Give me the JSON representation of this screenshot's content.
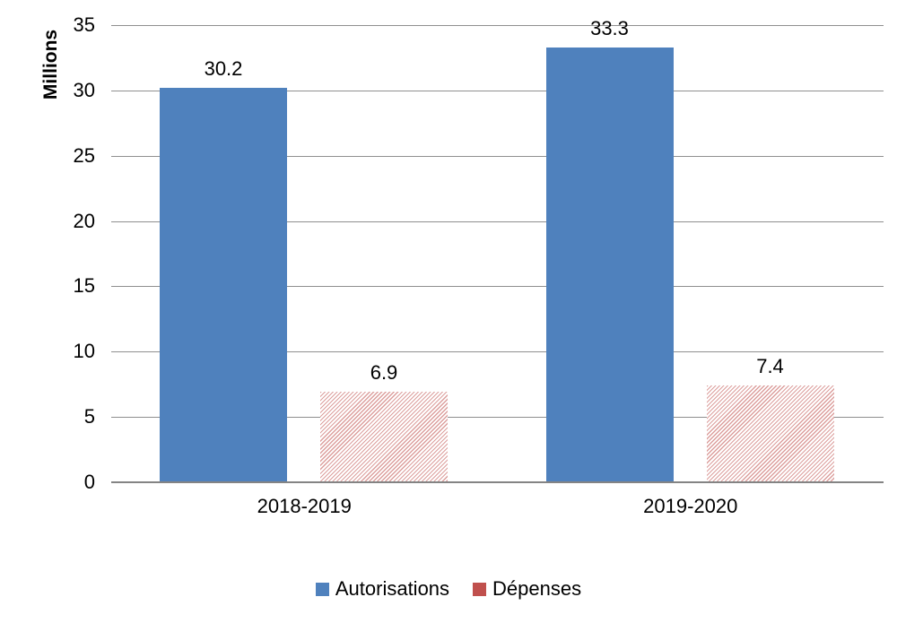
{
  "chart_data": {
    "type": "bar",
    "ylabel": "Millions",
    "xlabel": "",
    "categories": [
      "2018-2019",
      "2019-2020"
    ],
    "series": [
      {
        "name": "Autorisations",
        "color": "#4F81BD",
        "fill": "solid",
        "values": [
          30.2,
          33.3
        ],
        "data_labels": [
          "30.2",
          "33.3"
        ]
      },
      {
        "name": "Dépenses",
        "color": "#C0504D",
        "fill": "diagonal-hatch",
        "values": [
          6.9,
          7.4
        ],
        "data_labels": [
          "6.9",
          "7.4"
        ]
      }
    ],
    "ylim": [
      0,
      35
    ],
    "yticks": [
      0,
      5,
      10,
      15,
      20,
      25,
      30,
      35
    ],
    "grid": true,
    "legend_position": "bottom",
    "colors": {
      "gridline": "#8f8f8f",
      "axis_line": "#848484",
      "text": "#000000",
      "background": "#ffffff"
    }
  }
}
